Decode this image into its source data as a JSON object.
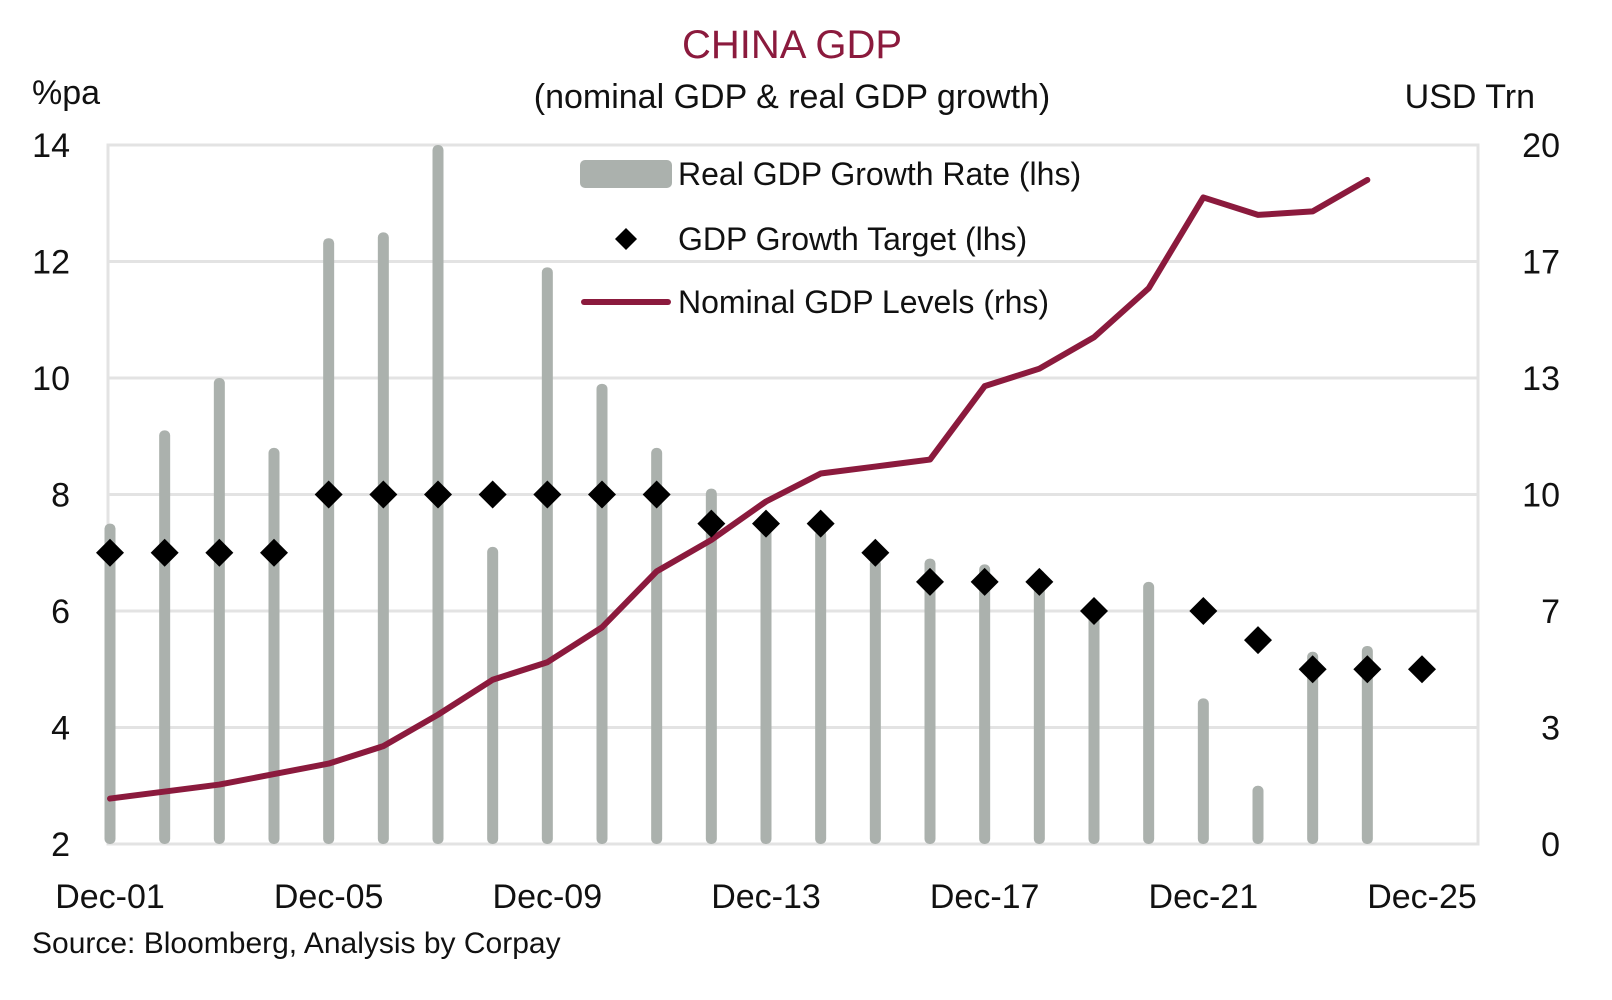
{
  "chart_data": {
    "type": "bar",
    "title": "CHINA GDP",
    "subtitle": "(nominal GDP & real GDP growth)",
    "ylabel_left": "%pa",
    "ylabel_right": "USD Trn",
    "xlabel": "",
    "x": [
      "2001",
      "2002",
      "2003",
      "2004",
      "2005",
      "2006",
      "2007",
      "2008",
      "2009",
      "2010",
      "2011",
      "2012",
      "2013",
      "2014",
      "2015",
      "2016",
      "2017",
      "2018",
      "2019",
      "2020",
      "2021",
      "2022",
      "2023",
      "2024",
      "2025"
    ],
    "x_tick_labels": [
      "Dec-01",
      "Dec-05",
      "Dec-09",
      "Dec-13",
      "Dec-17",
      "Dec-21",
      "Dec-25"
    ],
    "x_tick_index": [
      0,
      4,
      8,
      12,
      16,
      20,
      24
    ],
    "ylim_left": [
      2,
      14
    ],
    "yticks_left": [
      14,
      12,
      10,
      8,
      6,
      4,
      2
    ],
    "ylim_right": [
      0,
      20
    ],
    "yticks_right": [
      "20",
      "17",
      "13",
      "10",
      "7",
      "3",
      "0"
    ],
    "grid": true,
    "legend_position": "top-center",
    "series": [
      {
        "name": "Real GDP Growth Rate (lhs)",
        "type": "bar",
        "axis": "left",
        "color": "#abb1ad",
        "values": [
          7.5,
          9.1,
          10.0,
          8.8,
          12.4,
          12.5,
          14.0,
          7.1,
          11.9,
          9.9,
          8.8,
          8.1,
          7.7,
          7.4,
          6.9,
          6.9,
          6.8,
          6.7,
          6.0,
          6.5,
          4.5,
          3.0,
          5.3,
          5.4,
          null
        ]
      },
      {
        "name": "GDP Growth Target (lhs)",
        "type": "scatter",
        "axis": "left",
        "marker": "diamond",
        "color": "#000000",
        "values": [
          7.0,
          7.0,
          7.0,
          7.0,
          8.0,
          8.0,
          8.0,
          8.0,
          8.0,
          8.0,
          8.0,
          7.5,
          7.5,
          7.5,
          7.0,
          6.5,
          6.5,
          6.5,
          6.0,
          null,
          6.0,
          5.5,
          5.0,
          5.0,
          5.0
        ]
      },
      {
        "name": "Nominal GDP Levels (rhs)",
        "type": "line",
        "axis": "right",
        "color": "#8b1a3d",
        "values": [
          1.3,
          1.5,
          1.7,
          2.0,
          2.3,
          2.8,
          3.7,
          4.7,
          5.2,
          6.2,
          7.8,
          8.7,
          9.8,
          10.6,
          10.8,
          11.0,
          13.1,
          13.6,
          14.5,
          15.9,
          18.5,
          18.0,
          18.1,
          19.0,
          null
        ]
      }
    ],
    "source": "Source: Bloomberg, Analysis by Corpay"
  }
}
